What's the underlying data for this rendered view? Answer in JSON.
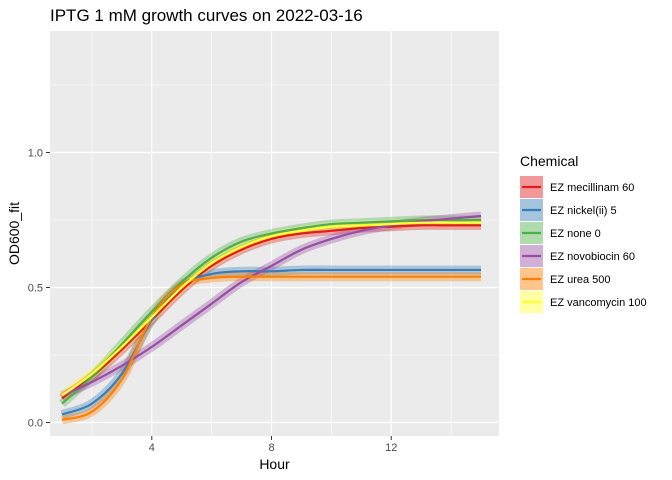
{
  "chart_data": {
    "type": "line",
    "title": "IPTG 1 mM growth curves on 2022-03-16",
    "xlabel": "Hour",
    "ylabel": "OD600_fit",
    "xlim": [
      0.6,
      15.6
    ],
    "ylim": [
      -0.05,
      1.45
    ],
    "x_ticks": [
      4,
      8,
      12
    ],
    "y_ticks": [
      0.0,
      0.5,
      1.0
    ],
    "x_tick_labels": [
      "4",
      "8",
      "12"
    ],
    "y_tick_labels": [
      "0.0",
      "0.5",
      "1.0"
    ],
    "grid": true,
    "legend": {
      "title": "Chemical",
      "position": "right"
    },
    "x": [
      1,
      2,
      3,
      4,
      5,
      6,
      7,
      8,
      9,
      10,
      11,
      12,
      13,
      14,
      15
    ],
    "series": [
      {
        "name": "EZ mecillinam 60",
        "color": "#E41A1C",
        "values": [
          0.09,
          0.17,
          0.27,
          0.38,
          0.49,
          0.58,
          0.64,
          0.68,
          0.7,
          0.71,
          0.72,
          0.725,
          0.73,
          0.73,
          0.73
        ]
      },
      {
        "name": "EZ nickel(ii) 5",
        "color": "#377EB8",
        "values": [
          0.03,
          0.07,
          0.18,
          0.38,
          0.51,
          0.55,
          0.56,
          0.56,
          0.565,
          0.565,
          0.565,
          0.565,
          0.565,
          0.565,
          0.565
        ]
      },
      {
        "name": "EZ none 0",
        "color": "#4DAF4A",
        "values": [
          0.07,
          0.17,
          0.29,
          0.41,
          0.52,
          0.61,
          0.67,
          0.7,
          0.72,
          0.735,
          0.74,
          0.745,
          0.75,
          0.75,
          0.75
        ]
      },
      {
        "name": "EZ novobiocin 60",
        "color": "#984EA3",
        "values": [
          0.1,
          0.15,
          0.21,
          0.28,
          0.36,
          0.44,
          0.52,
          0.58,
          0.64,
          0.68,
          0.71,
          0.73,
          0.745,
          0.755,
          0.765
        ]
      },
      {
        "name": "EZ urea 500",
        "color": "#FF7F00",
        "values": [
          0.01,
          0.04,
          0.16,
          0.39,
          0.51,
          0.535,
          0.54,
          0.54,
          0.54,
          0.54,
          0.54,
          0.54,
          0.54,
          0.54,
          0.54
        ]
      },
      {
        "name": "EZ vancomycin 100",
        "color": "#FFFF33",
        "values": [
          0.1,
          0.18,
          0.28,
          0.39,
          0.5,
          0.59,
          0.65,
          0.69,
          0.71,
          0.725,
          0.73,
          0.735,
          0.74,
          0.74,
          0.74
        ]
      }
    ]
  }
}
